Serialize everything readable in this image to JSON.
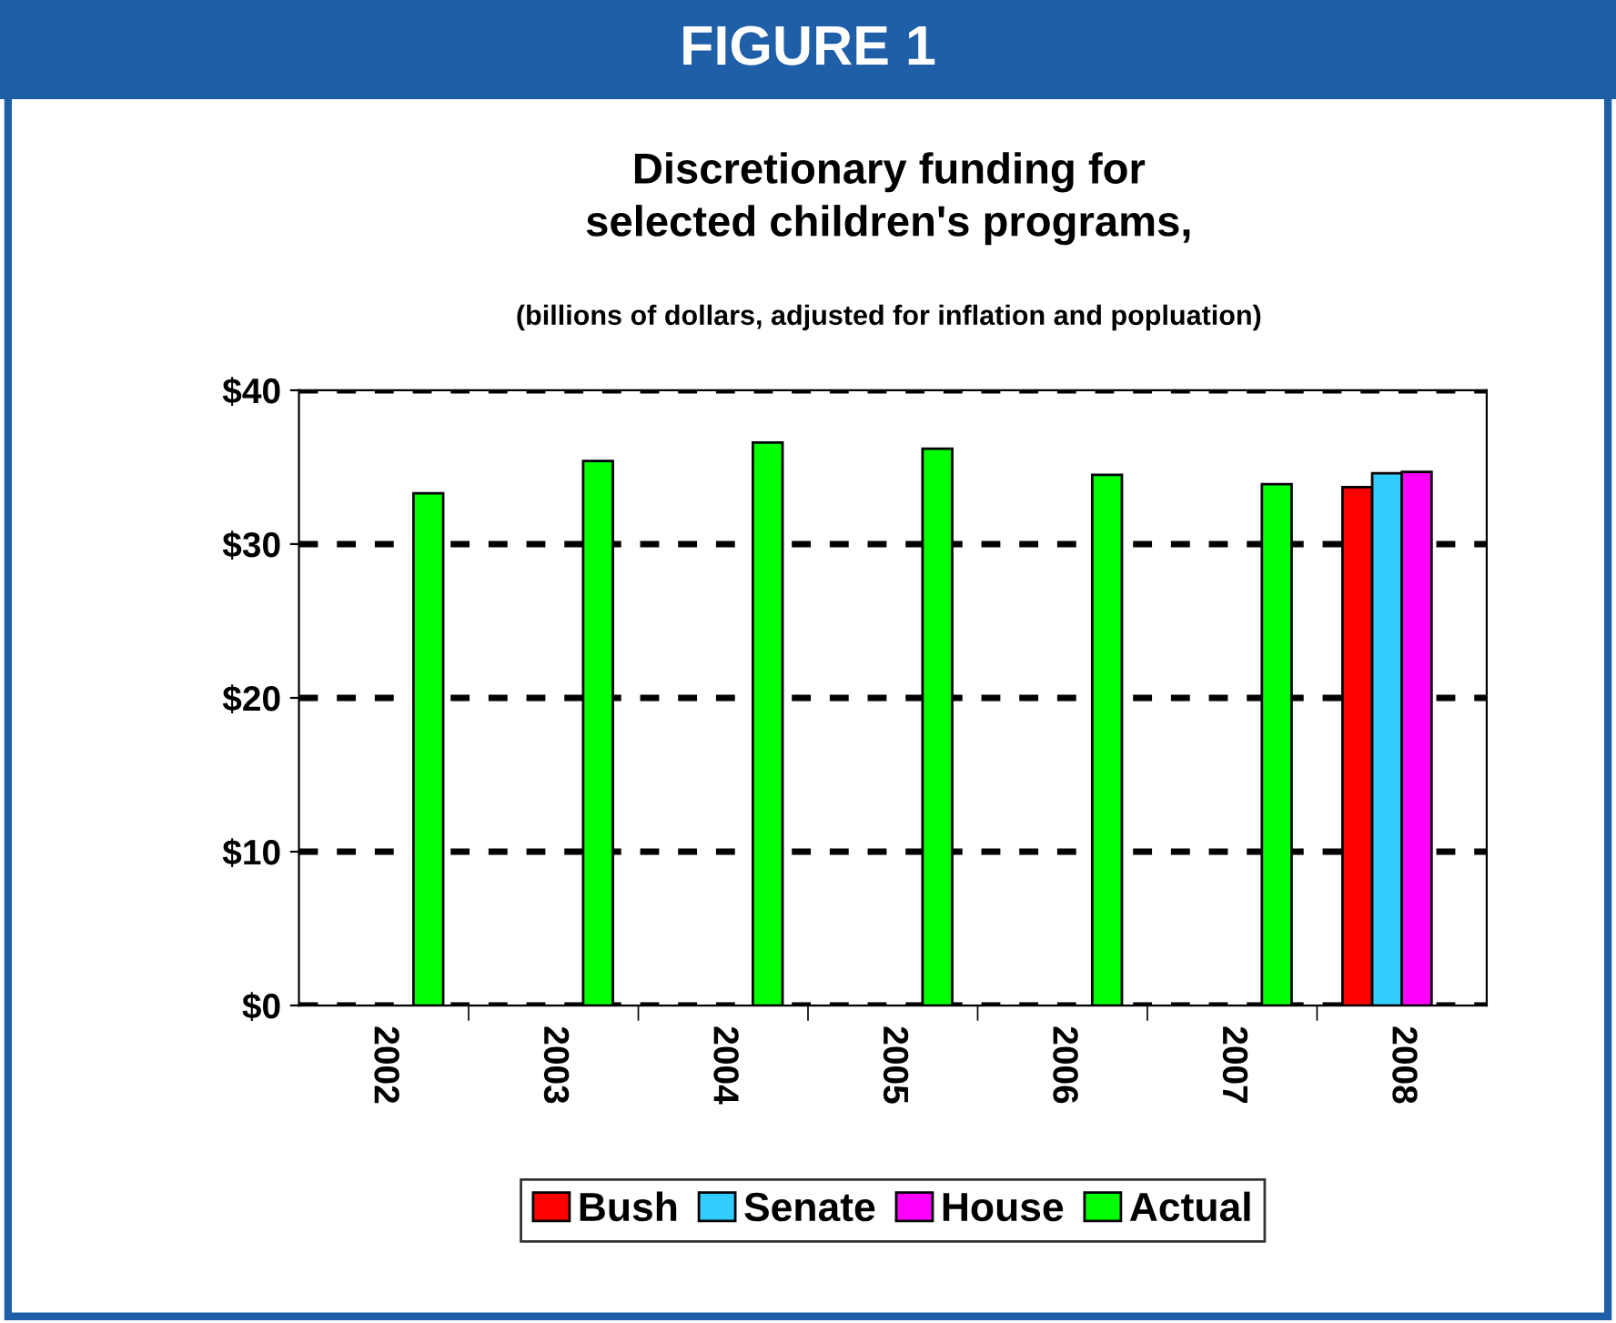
{
  "chart_data": {
    "type": "bar",
    "title": "Discretionary funding for\nselected children's programs,",
    "subtitle": "(billions of dollars, adjusted for inflation and popluation)",
    "annotations": [
      "FIGURE 1"
    ],
    "categories": [
      "2002",
      "2003",
      "2004",
      "2005",
      "2006",
      "2007",
      "2008"
    ],
    "series": [
      {
        "name": "Bush",
        "color": "#ff0000",
        "values": [
          null,
          null,
          null,
          null,
          null,
          null,
          33.7
        ]
      },
      {
        "name": "Senate",
        "color": "#33ccff",
        "values": [
          null,
          null,
          null,
          null,
          null,
          null,
          34.6
        ]
      },
      {
        "name": "House",
        "color": "#ff00ff",
        "values": [
          null,
          null,
          null,
          null,
          null,
          null,
          34.7
        ]
      },
      {
        "name": "Actual",
        "color": "#00ff00",
        "values": [
          33.3,
          35.4,
          36.6,
          36.2,
          34.5,
          33.9,
          null
        ]
      }
    ],
    "ylim": [
      0,
      40
    ],
    "yticks": [
      {
        "value": 0,
        "label": "$0"
      },
      {
        "value": 10,
        "label": "$10"
      },
      {
        "value": 20,
        "label": "$20"
      },
      {
        "value": 30,
        "label": "$30"
      },
      {
        "value": 40,
        "label": "$40"
      }
    ],
    "grid": "y",
    "legend": "bottom"
  }
}
